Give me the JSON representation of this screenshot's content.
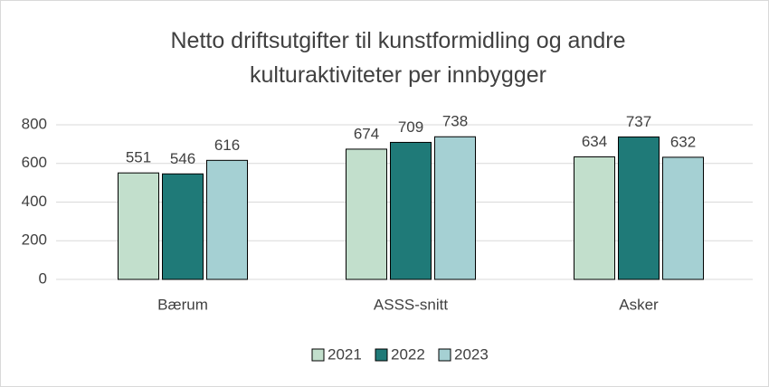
{
  "chart_data": {
    "type": "bar",
    "title": "Netto driftsutgifter til kunstformidling og andre kulturaktiviteter per innbygger",
    "categories": [
      "Bærum",
      "ASSS-snitt",
      "Asker"
    ],
    "series": [
      {
        "name": "2021",
        "color": "#c2dfcc",
        "values": [
          551,
          674,
          634
        ]
      },
      {
        "name": "2022",
        "color": "#1f7a78",
        "values": [
          546,
          709,
          737
        ]
      },
      {
        "name": "2023",
        "color": "#a5d0d3",
        "values": [
          616,
          738,
          632
        ]
      }
    ],
    "ylim": [
      0,
      800
    ],
    "yticks": [
      0,
      200,
      400,
      600,
      800
    ],
    "grid": true,
    "legend": "bottom"
  }
}
